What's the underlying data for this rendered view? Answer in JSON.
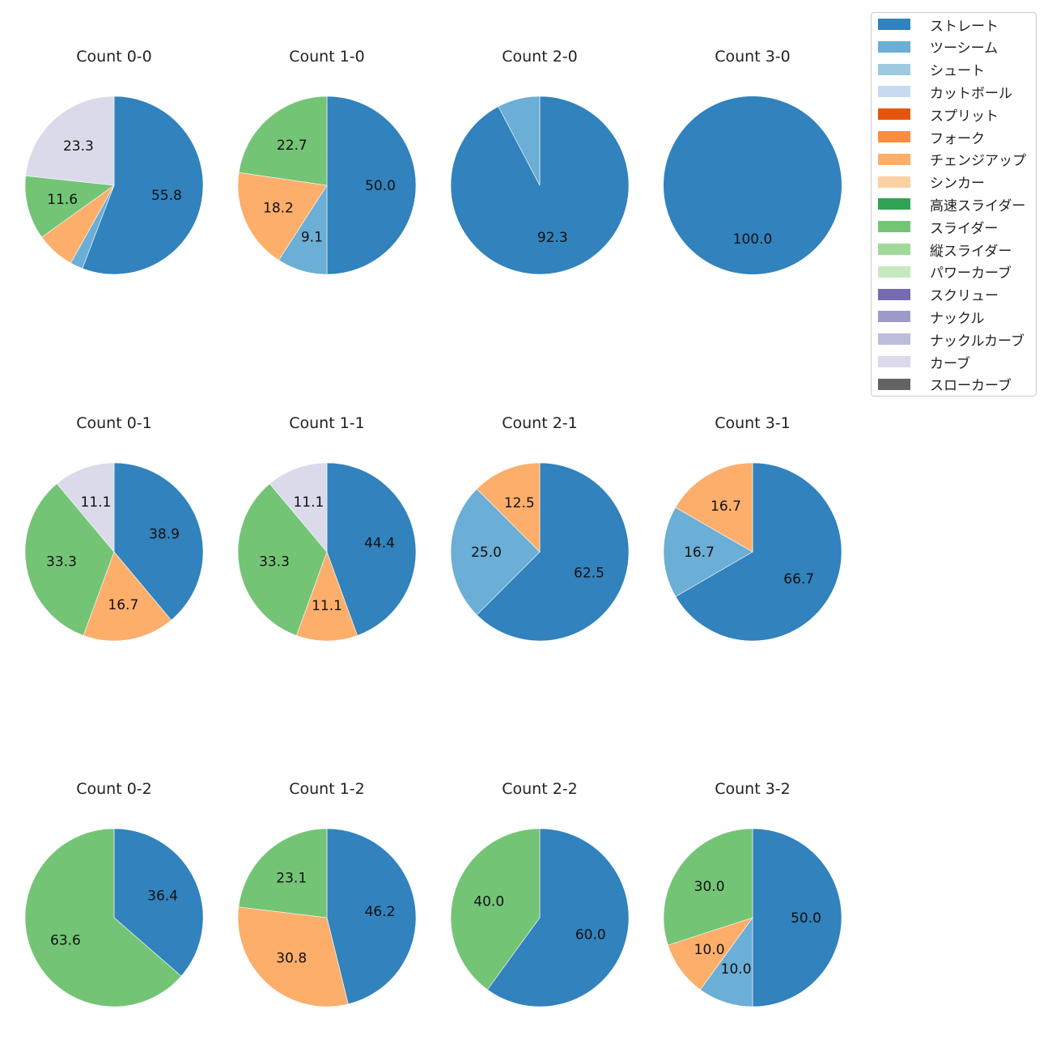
{
  "chart_data": {
    "type": "pie",
    "legend": {
      "placement": "top-right",
      "entries": [
        {
          "label": "ストレート",
          "color": "#3182bd"
        },
        {
          "label": "ツーシーム",
          "color": "#6baed6"
        },
        {
          "label": "シュート",
          "color": "#9ecae1"
        },
        {
          "label": "カットボール",
          "color": "#c6dbef"
        },
        {
          "label": "スプリット",
          "color": "#e6550d"
        },
        {
          "label": "フォーク",
          "color": "#fd8d3c"
        },
        {
          "label": "チェンジアップ",
          "color": "#fdae6b"
        },
        {
          "label": "シンカー",
          "color": "#fdd0a2"
        },
        {
          "label": "高速スライダー",
          "color": "#31a354"
        },
        {
          "label": "スライダー",
          "color": "#74c476"
        },
        {
          "label": "縦スライダー",
          "color": "#a1d99b"
        },
        {
          "label": "パワーカーブ",
          "color": "#c7e9c0"
        },
        {
          "label": "スクリュー",
          "color": "#756bb1"
        },
        {
          "label": "ナックル",
          "color": "#9e9ac8"
        },
        {
          "label": "ナックルカーブ",
          "color": "#bcbddc"
        },
        {
          "label": "カーブ",
          "color": "#dadaeb"
        },
        {
          "label": "スローカーブ",
          "color": "#636363"
        }
      ]
    },
    "label_min_pct": 8,
    "pies": [
      {
        "title": "Count 0-0",
        "slices": [
          {
            "k": "ストレート",
            "v": 55.8
          },
          {
            "k": "ツーシーム",
            "v": 2.3
          },
          {
            "k": "チェンジアップ",
            "v": 7.0
          },
          {
            "k": "スライダー",
            "v": 11.6
          },
          {
            "k": "カーブ",
            "v": 23.3
          }
        ]
      },
      {
        "title": "Count 1-0",
        "slices": [
          {
            "k": "ストレート",
            "v": 50.0
          },
          {
            "k": "ツーシーム",
            "v": 9.1
          },
          {
            "k": "チェンジアップ",
            "v": 18.2
          },
          {
            "k": "スライダー",
            "v": 22.7
          }
        ]
      },
      {
        "title": "Count 2-0",
        "slices": [
          {
            "k": "ストレート",
            "v": 92.3
          },
          {
            "k": "ツーシーム",
            "v": 7.7
          }
        ]
      },
      {
        "title": "Count 3-0",
        "slices": [
          {
            "k": "ストレート",
            "v": 100.0
          }
        ]
      },
      {
        "title": "Count 0-1",
        "slices": [
          {
            "k": "ストレート",
            "v": 38.9
          },
          {
            "k": "チェンジアップ",
            "v": 16.7
          },
          {
            "k": "スライダー",
            "v": 33.3
          },
          {
            "k": "カーブ",
            "v": 11.1
          }
        ]
      },
      {
        "title": "Count 1-1",
        "slices": [
          {
            "k": "ストレート",
            "v": 44.4
          },
          {
            "k": "チェンジアップ",
            "v": 11.1
          },
          {
            "k": "スライダー",
            "v": 33.3
          },
          {
            "k": "カーブ",
            "v": 11.1
          }
        ]
      },
      {
        "title": "Count 2-1",
        "slices": [
          {
            "k": "ストレート",
            "v": 62.5
          },
          {
            "k": "ツーシーム",
            "v": 25.0
          },
          {
            "k": "チェンジアップ",
            "v": 12.5
          }
        ]
      },
      {
        "title": "Count 3-1",
        "slices": [
          {
            "k": "ストレート",
            "v": 66.7
          },
          {
            "k": "ツーシーム",
            "v": 16.7
          },
          {
            "k": "チェンジアップ",
            "v": 16.7
          }
        ]
      },
      {
        "title": "Count 0-2",
        "slices": [
          {
            "k": "ストレート",
            "v": 36.4
          },
          {
            "k": "スライダー",
            "v": 63.6
          }
        ]
      },
      {
        "title": "Count 1-2",
        "slices": [
          {
            "k": "ストレート",
            "v": 46.2
          },
          {
            "k": "チェンジアップ",
            "v": 30.8
          },
          {
            "k": "スライダー",
            "v": 23.1
          }
        ]
      },
      {
        "title": "Count 2-2",
        "slices": [
          {
            "k": "ストレート",
            "v": 60.0
          },
          {
            "k": "スライダー",
            "v": 40.0
          }
        ]
      },
      {
        "title": "Count 3-2",
        "slices": [
          {
            "k": "ストレート",
            "v": 50.0
          },
          {
            "k": "ツーシーム",
            "v": 10.0
          },
          {
            "k": "チェンジアップ",
            "v": 10.0
          },
          {
            "k": "スライダー",
            "v": 30.0
          }
        ]
      }
    ]
  }
}
